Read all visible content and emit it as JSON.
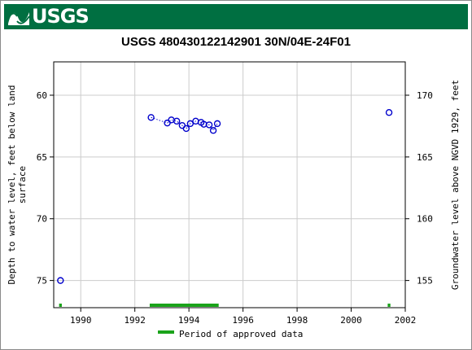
{
  "banner": {
    "logo_text": "USGS",
    "logo_icon": "usgs-wave-icon",
    "background_color": "#006f41"
  },
  "chart_data": {
    "type": "scatter",
    "title": "USGS 480430122142901 30N/04E-24F01",
    "ylabel_left": "Depth to water level, feet below land surface",
    "ylabel_left_lines": [
      "Depth to water level, feet below land",
      "surface"
    ],
    "ylabel_right": "Groundwater level above NGVD 1929, feet",
    "xlim": [
      1989.0,
      2002.0
    ],
    "ylim_left": [
      77.2,
      57.3
    ],
    "ylim_right": [
      152.8,
      172.7
    ],
    "x_ticks": [
      1990,
      1992,
      1994,
      1996,
      1998,
      2000,
      2002
    ],
    "x_tick_labels": [
      "1990",
      "1992",
      "1994",
      "1996",
      "1998",
      "2000",
      "2002"
    ],
    "y_left_ticks": [
      60,
      65,
      70,
      75
    ],
    "y_left_tick_labels": [
      "60",
      "65",
      "70",
      "75"
    ],
    "y_right_ticks": [
      170,
      165,
      160,
      155
    ],
    "y_right_tick_labels": [
      "170",
      "165",
      "160",
      "155"
    ],
    "grid": true,
    "marker_color": "#0000cc",
    "points": [
      {
        "x": 1989.25,
        "y": 75.0
      },
      {
        "x": 1992.6,
        "y": 61.8
      },
      {
        "x": 1993.2,
        "y": 62.25
      },
      {
        "x": 1993.35,
        "y": 62.0
      },
      {
        "x": 1993.55,
        "y": 62.1
      },
      {
        "x": 1993.75,
        "y": 62.45
      },
      {
        "x": 1993.9,
        "y": 62.7
      },
      {
        "x": 1994.05,
        "y": 62.3
      },
      {
        "x": 1994.25,
        "y": 62.1
      },
      {
        "x": 1994.45,
        "y": 62.2
      },
      {
        "x": 1994.55,
        "y": 62.35
      },
      {
        "x": 1994.75,
        "y": 62.4
      },
      {
        "x": 1994.9,
        "y": 62.85
      },
      {
        "x": 1995.05,
        "y": 62.3
      },
      {
        "x": 2001.4,
        "y": 61.4
      }
    ],
    "connected_range": [
      1992.6,
      1995.05
    ],
    "approved_periods": [
      {
        "start": 1989.2,
        "end": 1989.3
      },
      {
        "start": 1992.55,
        "end": 1995.1
      },
      {
        "start": 2001.35,
        "end": 2001.45
      }
    ],
    "approved_color": "#1aa31a",
    "legend": {
      "label": "Period of approved data",
      "placement": "bottom-center"
    }
  }
}
